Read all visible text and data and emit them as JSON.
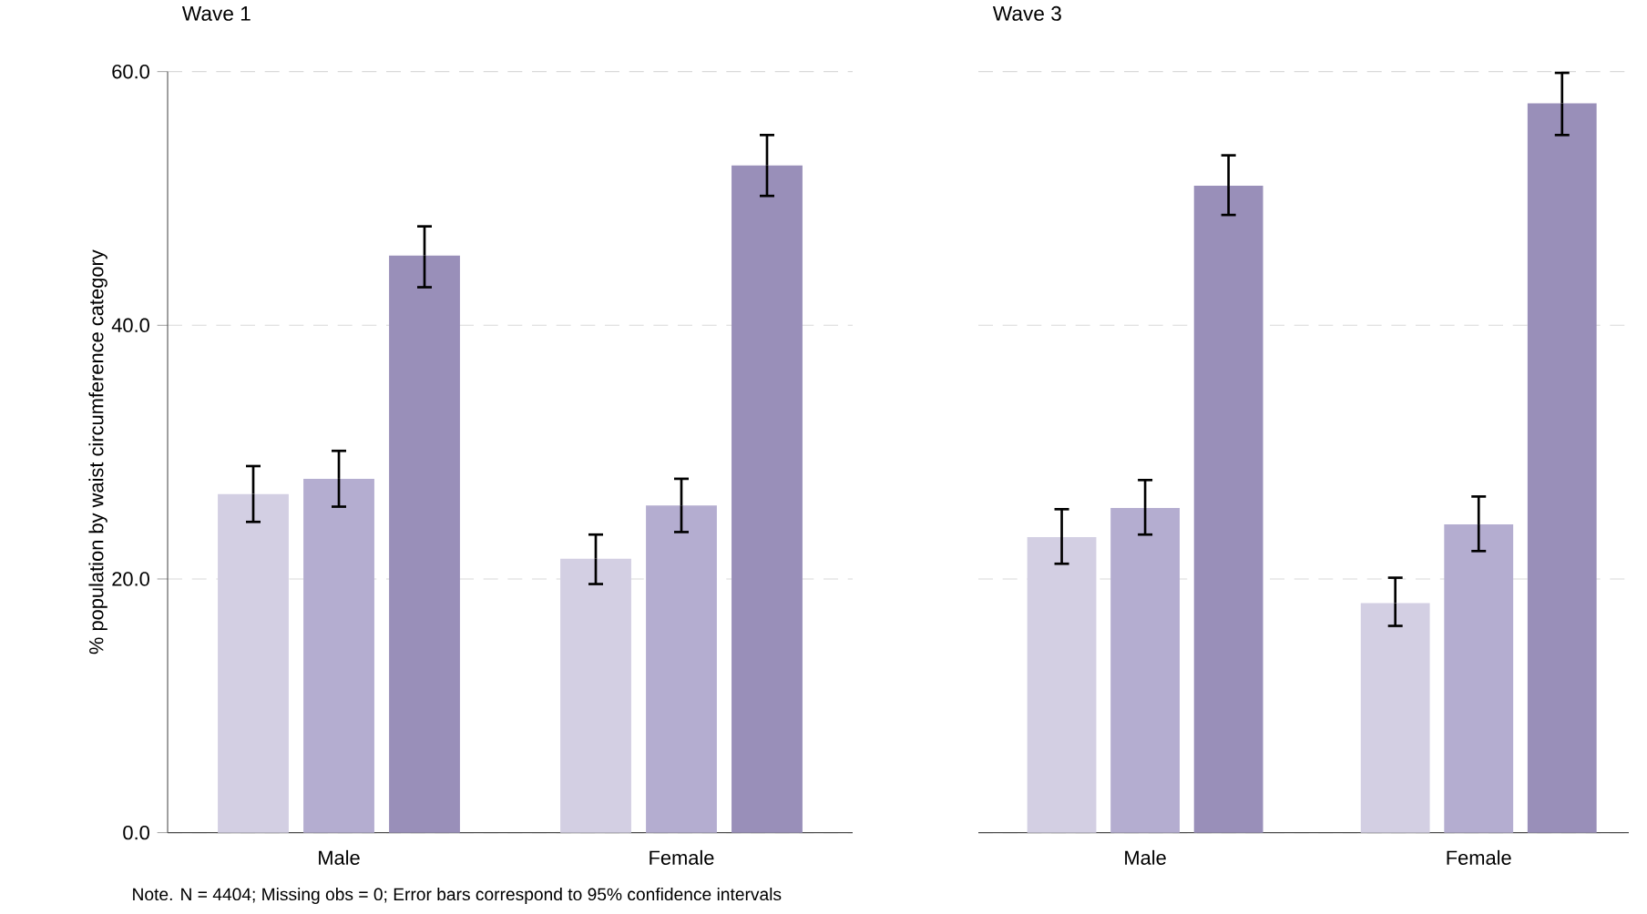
{
  "chart_data": [
    {
      "type": "bar",
      "title": "Wave 1",
      "ylabel": "% population by waist circumference category",
      "categories": [
        "Male",
        "Female"
      ],
      "series": [
        {
          "color": "#d3cfe3",
          "values": [
            26.7,
            21.6
          ],
          "errors": [
            [
              24.5,
              28.9
            ],
            [
              19.6,
              23.5
            ]
          ]
        },
        {
          "color": "#b4add0",
          "values": [
            27.9,
            25.8
          ],
          "errors": [
            [
              25.7,
              30.1
            ],
            [
              23.7,
              27.9
            ]
          ]
        },
        {
          "color": "#998fb9",
          "values": [
            45.5,
            52.6
          ],
          "errors": [
            [
              43.0,
              47.8
            ],
            [
              50.2,
              55.0
            ]
          ]
        }
      ],
      "ylim": [
        0,
        60
      ],
      "yticks": [
        {
          "value": 0,
          "label": "0.0"
        },
        {
          "value": 20,
          "label": "20.0"
        },
        {
          "value": 40,
          "label": "40.0"
        },
        {
          "value": 60,
          "label": "60.0"
        }
      ],
      "grid": "y",
      "annotations": [
        "Note. N = 4404; Missing obs = 0; Error bars correspond to 95% confidence intervals"
      ]
    },
    {
      "type": "bar",
      "title": "Wave 3",
      "categories": [
        "Male",
        "Female"
      ],
      "series": [
        {
          "color": "#d3cfe3",
          "values": [
            23.3,
            18.1
          ],
          "errors": [
            [
              21.2,
              25.5
            ],
            [
              16.3,
              20.1
            ]
          ]
        },
        {
          "color": "#b4add0",
          "values": [
            25.6,
            24.3
          ],
          "errors": [
            [
              23.5,
              27.8
            ],
            [
              22.2,
              26.5
            ]
          ]
        },
        {
          "color": "#998fb9",
          "values": [
            51.0,
            57.5
          ],
          "errors": [
            [
              48.7,
              53.4
            ],
            [
              55.0,
              59.9
            ]
          ]
        }
      ],
      "ylim": [
        0,
        60
      ],
      "yticks": [
        {
          "value": 0,
          "label": null
        },
        {
          "value": 20,
          "label": null
        },
        {
          "value": 40,
          "label": null
        },
        {
          "value": 60,
          "label": null
        }
      ],
      "grid": "y",
      "tick_labels": "x"
    }
  ]
}
